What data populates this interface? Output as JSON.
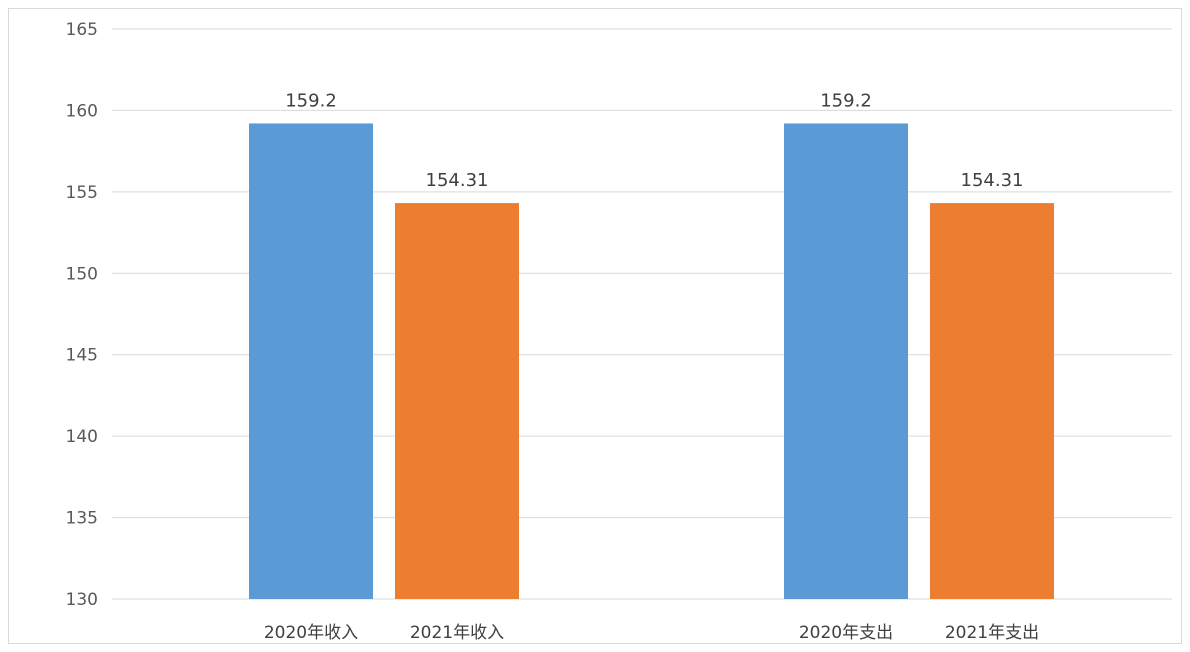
{
  "chart_data": {
    "type": "bar",
    "title": "",
    "xlabel": "",
    "ylabel": "",
    "ylim": [
      130,
      165
    ],
    "ytick_step": 5,
    "grid": true,
    "legend": "none",
    "categories": [
      "2020年收入",
      "2021年收入",
      "2020年支出",
      "2021年支出"
    ],
    "values": [
      159.2,
      154.31,
      159.2,
      154.31
    ],
    "data_labels": [
      "159.2",
      "154.31",
      "159.2",
      "154.31"
    ],
    "colors": [
      "#5b9bd5",
      "#ed7d31",
      "#5b9bd5",
      "#ed7d31"
    ]
  }
}
